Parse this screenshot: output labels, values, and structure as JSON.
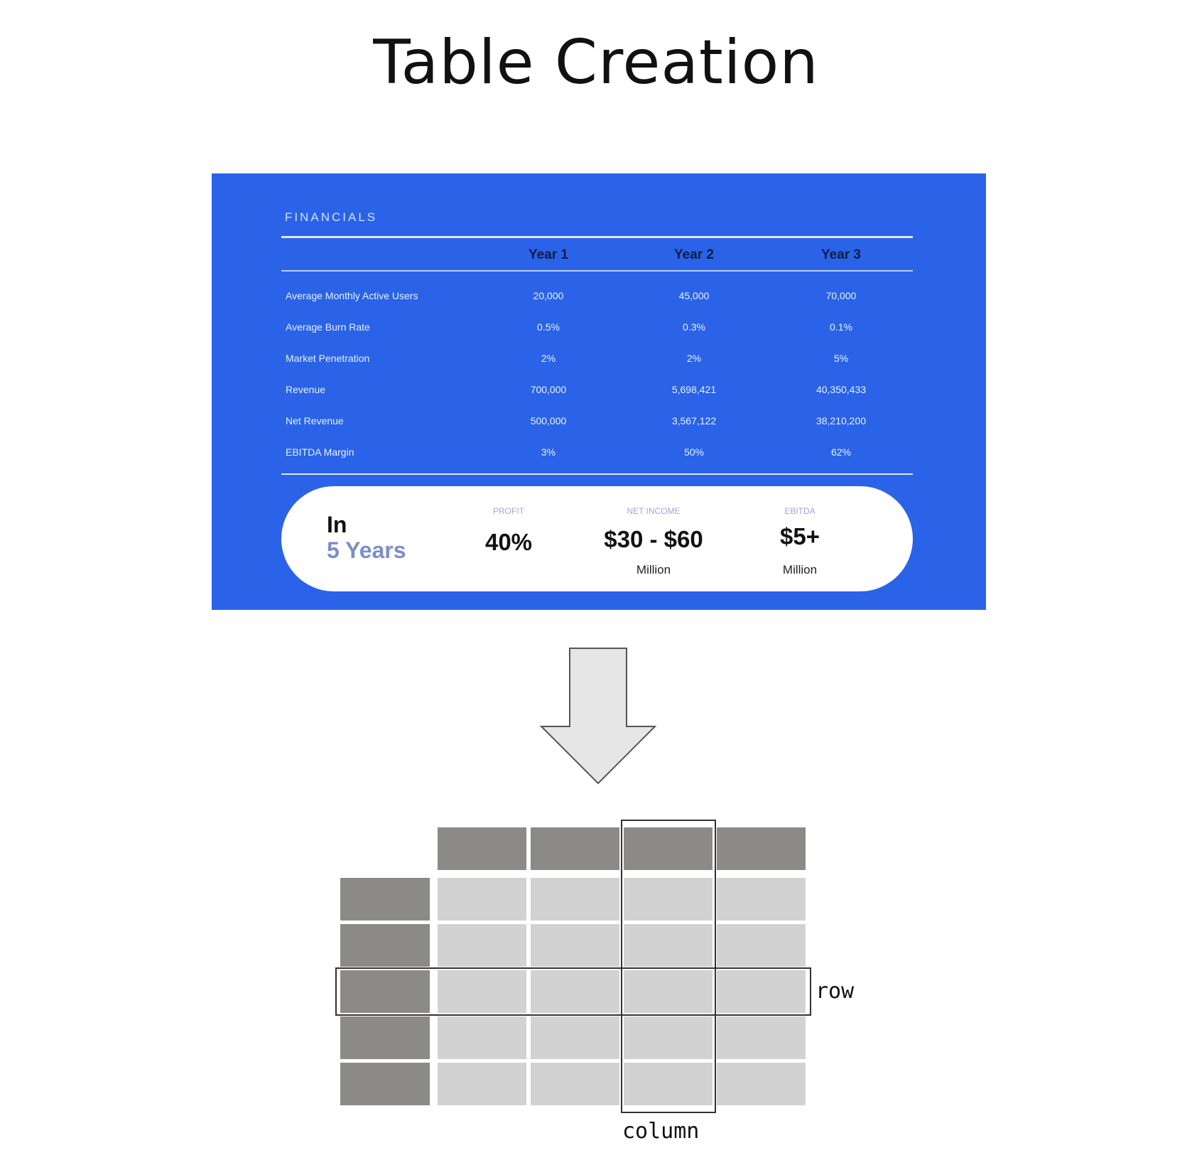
{
  "title": "Table Creation",
  "financials": {
    "heading": "FINANCIALS",
    "columns": [
      "Year 1",
      "Year 2",
      "Year 3"
    ],
    "rows": [
      {
        "label": "Average Monthly Active Users",
        "values": [
          "20,000",
          "45,000",
          "70,000"
        ]
      },
      {
        "label": "Average Burn Rate",
        "values": [
          "0.5%",
          "0.3%",
          "0.1%"
        ]
      },
      {
        "label": "Market Penetration",
        "values": [
          "2%",
          "2%",
          "5%"
        ]
      },
      {
        "label": "Revenue",
        "values": [
          "700,000",
          "5,698,421",
          "40,350,433"
        ]
      },
      {
        "label": "Net Revenue",
        "values": [
          "500,000",
          "3,567,122",
          "38,210,200"
        ]
      },
      {
        "label": "EBITDA Margin",
        "values": [
          "3%",
          "50%",
          "62%"
        ]
      }
    ],
    "summary": {
      "prefix": "In",
      "period": "5 Years",
      "stats": [
        {
          "label": "PROFIT",
          "value": "40%",
          "unit": ""
        },
        {
          "label": "NET INCOME",
          "value": "$30 - $60",
          "unit": "Million"
        },
        {
          "label": "EBITDA",
          "value": "$5+",
          "unit": "Million"
        }
      ]
    }
  },
  "diagram": {
    "row_label": "row",
    "column_label": "column"
  },
  "colors": {
    "card_blue": "#2a63e8",
    "header_gray": "#8c8a89",
    "cell_gray": "#d3d2d3",
    "arrow_fill": "#e6e6e6"
  }
}
